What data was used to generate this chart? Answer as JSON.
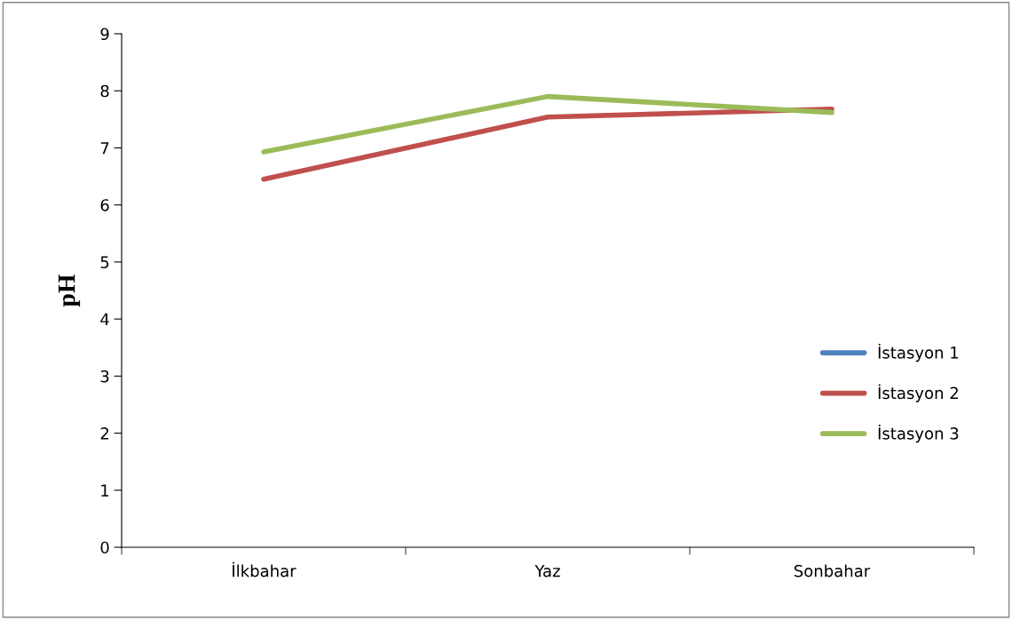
{
  "chart_data": {
    "type": "line",
    "ylabel": "pH",
    "categories": [
      "İlkbahar",
      "Yaz",
      "Sonbahar"
    ],
    "series": [
      {
        "name": "İstasyon 1",
        "color": "#4f81bd",
        "values": [
          null,
          null,
          null
        ]
      },
      {
        "name": "İstasyon 2",
        "color": "#c0504d",
        "values": [
          6.45,
          7.54,
          7.68
        ]
      },
      {
        "name": "İstasyon 3",
        "color": "#9bbb59",
        "values": [
          6.93,
          7.9,
          7.62
        ]
      }
    ],
    "ylim": [
      0,
      9
    ],
    "yticks": [
      0,
      1,
      2,
      3,
      4,
      5,
      6,
      7,
      8,
      9
    ],
    "grid": false,
    "legend": "right",
    "marker": "none",
    "line_style": "solid"
  }
}
